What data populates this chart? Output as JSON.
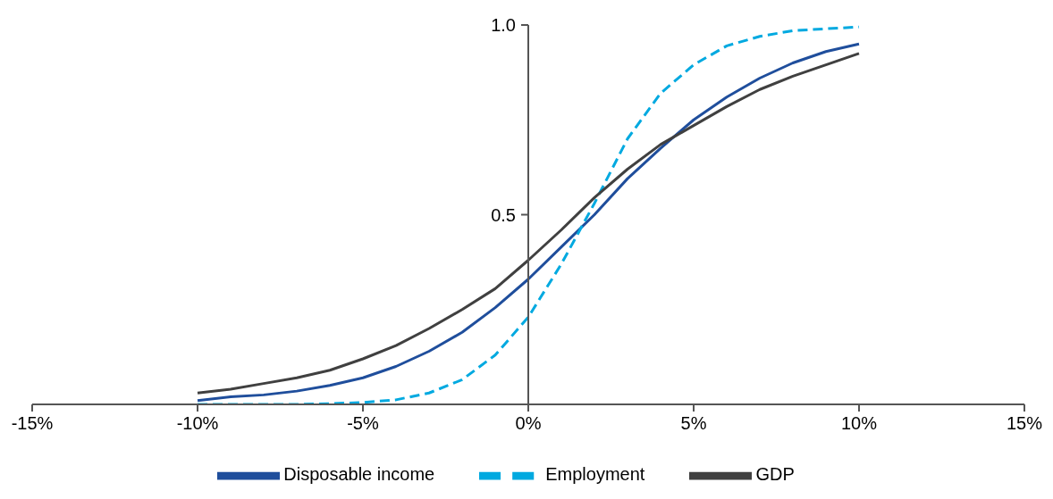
{
  "chart_data": {
    "type": "line",
    "x": [
      -10,
      -9,
      -8,
      -7,
      -6,
      -5,
      -4,
      -3,
      -2,
      -1,
      0,
      1,
      2,
      3,
      4,
      5,
      6,
      7,
      8,
      9,
      10
    ],
    "series": [
      {
        "name": "Disposable income",
        "color": "#1f4e9c",
        "line_style": "solid",
        "values": [
          0.01,
          0.02,
          0.025,
          0.035,
          0.05,
          0.07,
          0.1,
          0.14,
          0.19,
          0.255,
          0.33,
          0.415,
          0.5,
          0.595,
          0.675,
          0.75,
          0.81,
          0.86,
          0.9,
          0.93,
          0.95
        ]
      },
      {
        "name": "Employment",
        "color": "#00a9e0",
        "line_style": "dashed",
        "values": [
          0,
          0,
          0,
          0,
          0.002,
          0.005,
          0.012,
          0.03,
          0.065,
          0.13,
          0.23,
          0.37,
          0.53,
          0.7,
          0.82,
          0.895,
          0.945,
          0.97,
          0.985,
          0.99,
          0.995
        ]
      },
      {
        "name": "GDP",
        "color": "#404040",
        "line_style": "solid",
        "values": [
          0.03,
          0.04,
          0.055,
          0.07,
          0.09,
          0.12,
          0.155,
          0.2,
          0.25,
          0.305,
          0.38,
          0.46,
          0.545,
          0.62,
          0.685,
          0.735,
          0.785,
          0.83,
          0.865,
          0.895,
          0.925
        ]
      }
    ],
    "xlim": [
      -15,
      15
    ],
    "xticks": [
      {
        "value": -15,
        "label": "-15%"
      },
      {
        "value": -10,
        "label": "-10%"
      },
      {
        "value": -5,
        "label": "-5%"
      },
      {
        "value": 0,
        "label": "0%"
      },
      {
        "value": 5,
        "label": "5%"
      },
      {
        "value": 10,
        "label": "10%"
      },
      {
        "value": 15,
        "label": "15%"
      }
    ],
    "ylim": [
      0,
      1
    ],
    "yticks": [
      0.5,
      {
        "value": 1,
        "label": "1.0"
      }
    ],
    "grid": false,
    "legend": "bottom",
    "marker": "none"
  }
}
